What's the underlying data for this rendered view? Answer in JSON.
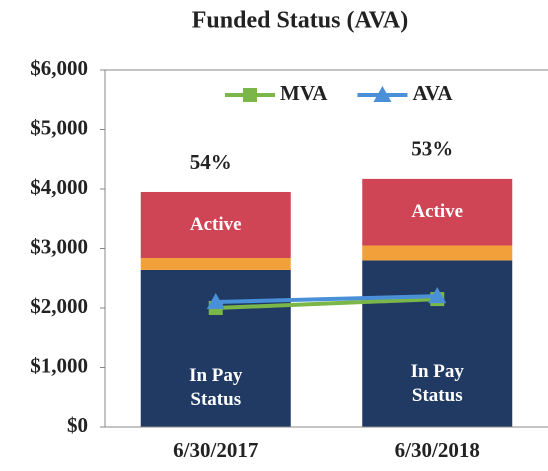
{
  "chart_data": {
    "type": "bar",
    "title": "Funded Status (AVA)",
    "categories": [
      "6/30/2017",
      "6/30/2018"
    ],
    "series": [
      {
        "name": "In Pay Status",
        "type": "bar",
        "color": "#213a63",
        "values": [
          2640,
          2800
        ]
      },
      {
        "type": "bar",
        "color": "#f2a03a",
        "values": [
          200,
          250
        ]
      },
      {
        "name": "Active",
        "type": "bar",
        "color": "#cf4555",
        "values": [
          1110,
          1120
        ]
      },
      {
        "name": "MVA",
        "type": "line",
        "marker": "square",
        "color": "#7ab648",
        "values": [
          2000,
          2150
        ]
      },
      {
        "name": "AVA",
        "type": "line",
        "marker": "triangle",
        "color": "#4a90d9",
        "values": [
          2100,
          2200
        ]
      }
    ],
    "annotations": [
      "54%",
      "53%"
    ],
    "ylim": [
      0,
      6000
    ],
    "yticks": [
      {
        "value": 0,
        "label": "$0"
      },
      {
        "value": 1000,
        "label": "$1,000"
      },
      {
        "value": 2000,
        "label": "$2,000"
      },
      {
        "value": 3000,
        "label": "$3,000"
      },
      {
        "value": 4000,
        "label": "$4,000"
      },
      {
        "value": 5000,
        "label": "$5,000"
      },
      {
        "value": 6000,
        "label": "$6,000"
      }
    ],
    "legend": "top-right"
  }
}
